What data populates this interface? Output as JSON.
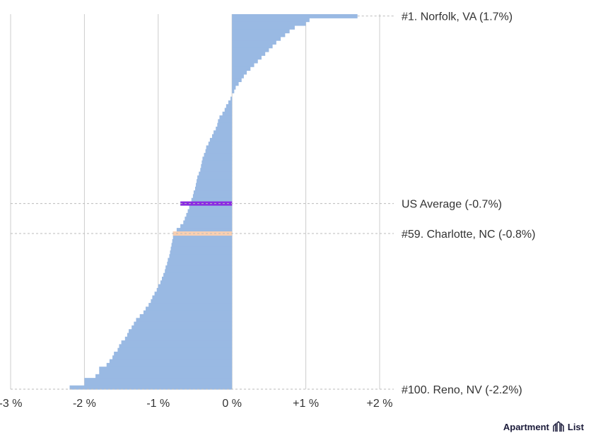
{
  "chart_data": {
    "type": "bar",
    "orientation": "horizontal",
    "title": "",
    "xlabel": "",
    "ylabel": "",
    "xlim": [
      -3,
      2
    ],
    "x_ticks": [
      {
        "value": -3,
        "label": "-3 %"
      },
      {
        "value": -2,
        "label": "-2 %"
      },
      {
        "value": -1,
        "label": "-1 %"
      },
      {
        "value": 0,
        "label": "0 %"
      },
      {
        "value": 1,
        "label": "+1 %"
      },
      {
        "value": 2,
        "label": "+2 %"
      }
    ],
    "grid": true,
    "bar_color": "#99b9e3",
    "ranks": [
      1,
      2,
      3,
      4,
      5,
      6,
      7,
      8,
      9,
      10,
      11,
      12,
      13,
      14,
      15,
      16,
      17,
      18,
      19,
      20,
      21,
      22,
      23,
      24,
      25,
      26,
      27,
      28,
      29,
      30,
      31,
      32,
      33,
      34,
      35,
      36,
      37,
      38,
      39,
      40,
      41,
      42,
      43,
      44,
      45,
      46,
      47,
      48,
      49,
      50,
      51,
      52,
      53,
      54,
      55,
      56,
      57,
      58,
      59,
      60,
      61,
      62,
      63,
      64,
      65,
      66,
      67,
      68,
      69,
      70,
      71,
      72,
      73,
      74,
      75,
      76,
      77,
      78,
      79,
      80,
      81,
      82,
      83,
      84,
      85,
      86,
      87,
      88,
      89,
      90,
      91,
      92,
      93,
      94,
      95,
      96,
      97,
      98,
      99,
      100
    ],
    "values": [
      1.7,
      1.05,
      1.0,
      0.85,
      0.78,
      0.72,
      0.66,
      0.6,
      0.55,
      0.5,
      0.45,
      0.4,
      0.35,
      0.3,
      0.25,
      0.2,
      0.16,
      0.13,
      0.09,
      0.05,
      0.03,
      0.0,
      -0.02,
      -0.05,
      -0.08,
      -0.1,
      -0.13,
      -0.17,
      -0.19,
      -0.2,
      -0.22,
      -0.25,
      -0.27,
      -0.3,
      -0.32,
      -0.35,
      -0.36,
      -0.38,
      -0.4,
      -0.41,
      -0.42,
      -0.43,
      -0.45,
      -0.47,
      -0.48,
      -0.49,
      -0.5,
      -0.52,
      -0.53,
      -0.55,
      -0.57,
      -0.58,
      -0.6,
      -0.62,
      -0.64,
      -0.66,
      -0.7,
      -0.75,
      -0.8,
      -0.8,
      -0.81,
      -0.82,
      -0.83,
      -0.84,
      -0.85,
      -0.87,
      -0.88,
      -0.9,
      -0.91,
      -0.93,
      -0.95,
      -0.97,
      -1.0,
      -1.02,
      -1.05,
      -1.08,
      -1.1,
      -1.13,
      -1.17,
      -1.2,
      -1.25,
      -1.3,
      -1.33,
      -1.36,
      -1.4,
      -1.42,
      -1.45,
      -1.5,
      -1.53,
      -1.55,
      -1.6,
      -1.62,
      -1.66,
      -1.7,
      -1.8,
      -1.8,
      -1.85,
      -2.0,
      -2.0,
      -2.2
    ],
    "highlights": [
      {
        "name": "US Average",
        "value": -0.7,
        "rank_position": 51,
        "color": "#8a2be2",
        "label": "US Average (-0.7%)"
      },
      {
        "name": "Charlotte, NC",
        "value": -0.8,
        "rank": 59,
        "color": "#f9cfb1",
        "label": "#59. Charlotte, NC (-0.8%)"
      }
    ],
    "annotations": [
      {
        "rank": 1,
        "label": "#1. Norfolk, VA (1.7%)"
      },
      {
        "rank": 100,
        "label": "#100. Reno, NV (-2.2%)"
      }
    ]
  },
  "brand": {
    "name": "Apartment",
    "name2": "List",
    "icon": "apartment-list-logo-icon"
  }
}
